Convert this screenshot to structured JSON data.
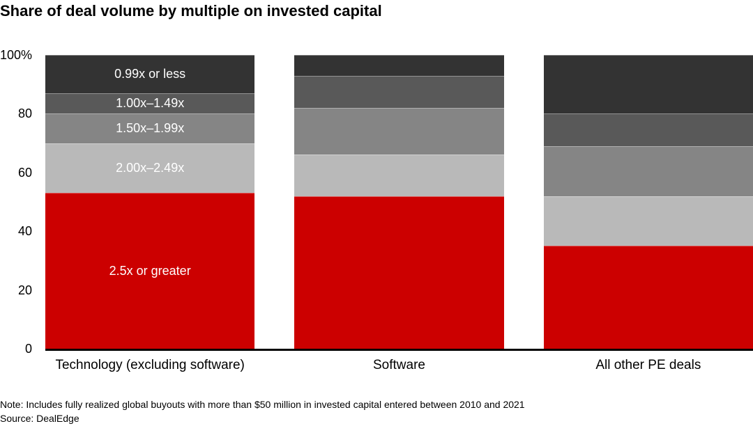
{
  "title": "Share of deal volume by multiple on invested capital",
  "footer": {
    "note": "Note: Includes fully realized global buyouts with more than $50 million in invested capital entered between 2010 and 2021",
    "source": "Source: DealEdge"
  },
  "chart_data": {
    "type": "bar",
    "stacked": true,
    "orientation": "vertical",
    "title": "Share of deal volume by multiple on invested capital",
    "categories": [
      "Technology (excluding software)",
      "Software",
      "All other PE deals"
    ],
    "series": [
      {
        "name": "2.5x or greater",
        "color": "#cc0000",
        "values": [
          53,
          52,
          35
        ]
      },
      {
        "name": "2.00x–2.49x",
        "color": "#b9b9b9",
        "values": [
          17,
          14,
          17
        ]
      },
      {
        "name": "1.50x–1.99x",
        "color": "#858585",
        "values": [
          10,
          16,
          17
        ]
      },
      {
        "name": "1.00x–1.49x",
        "color": "#595959",
        "values": [
          7,
          11,
          11
        ]
      },
      {
        "name": "0.99x or less",
        "color": "#333333",
        "values": [
          13,
          7,
          20
        ]
      }
    ],
    "ylim": [
      0,
      100
    ],
    "y_ticks": [
      {
        "label": "100%",
        "value": 100
      },
      {
        "label": "80",
        "value": 80
      },
      {
        "label": "60",
        "value": 60
      },
      {
        "label": "40",
        "value": 40
      },
      {
        "label": "20",
        "value": 20
      },
      {
        "label": "0",
        "value": 0
      }
    ],
    "grid": false,
    "legend": "labels-inside-first-bar",
    "series_labels_shown_on_category_index": 0
  }
}
